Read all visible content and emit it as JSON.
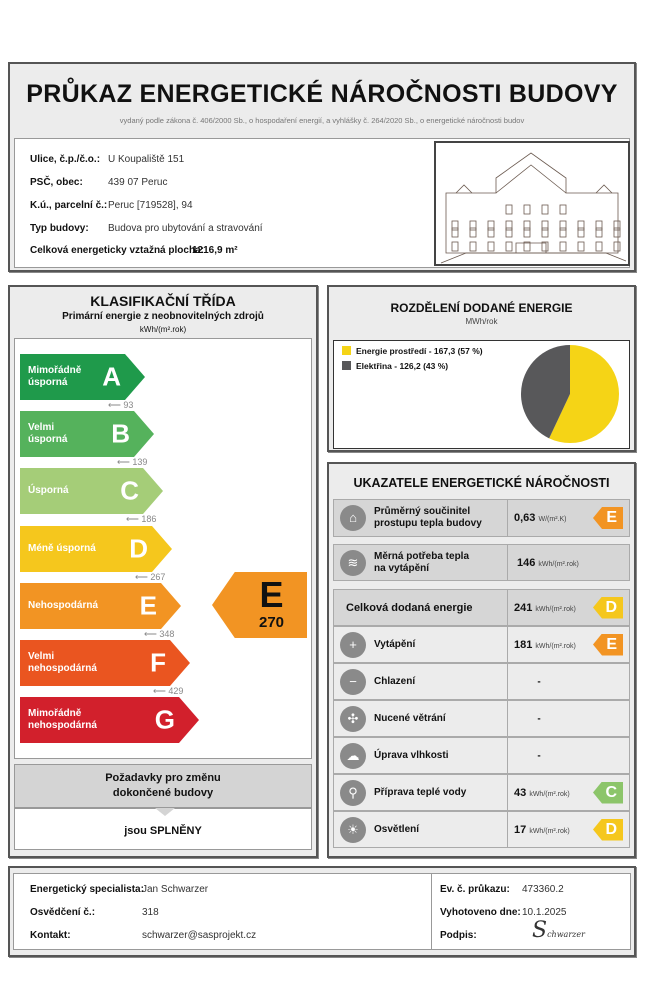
{
  "header": {
    "title": "PRŮKAZ ENERGETICKÉ NÁROČNOSTI BUDOVY",
    "subtitle": "vydaný podle zákona č. 406/2000 Sb., o hospodaření energií, a vyhlášky č. 264/2020 Sb., o energetické náročnosti budov"
  },
  "building": {
    "rows": [
      {
        "label": "Ulice, č.p./č.o.:",
        "value": "U Koupaliště 151"
      },
      {
        "label": "PSČ, obec:",
        "value": "439 07 Peruc"
      },
      {
        "label": "K.ú., parcelní č.:",
        "value": "Peruc [719528], 94"
      },
      {
        "label": "Typ budovy:",
        "value": "Budova pro ubytování a stravování"
      }
    ],
    "area_label": "Celková energeticky vztažná plocha:",
    "area_value": "1216,9 m²"
  },
  "classification": {
    "title": "KLASIFIKAČNÍ TŘÍDA",
    "subtitle": "Primární energie z neobnovitelných zdrojů",
    "unit": "kWh/(m².rok)",
    "classes": [
      {
        "letter": "A",
        "name": "Mimořádně\núsporná",
        "color": "#1f9a4b"
      },
      {
        "letter": "B",
        "name": "Velmi\núsporná",
        "color": "#55b25c"
      },
      {
        "letter": "C",
        "name": "Úsporná",
        "color": "#a5cd78"
      },
      {
        "letter": "D",
        "name": "Méně úsporná",
        "color": "#f5c71d"
      },
      {
        "letter": "E",
        "name": "Nehospodárná",
        "color": "#f29423"
      },
      {
        "letter": "F",
        "name": "Velmi\nnehospodárná",
        "color": "#ea5520"
      },
      {
        "letter": "G",
        "name": "Mimořádně\nnehospodárná",
        "color": "#d2202c"
      }
    ],
    "thresholds": [
      "93",
      "139",
      "186",
      "267",
      "348",
      "429"
    ],
    "rating": {
      "letter": "E",
      "value": "270",
      "color": "#f29423"
    },
    "requirements": {
      "title": "Požadavky pro změnu\ndokončené budovy",
      "result": "jsou SPLNĚNY"
    }
  },
  "energy_split": {
    "title": "ROZDĚLENÍ DODANÉ ENERGIE",
    "unit": "MWh/rok",
    "chart_data": {
      "type": "pie",
      "series": [
        {
          "name": "Energie prostředí - 167,3 (57 %)",
          "value": 167.3,
          "percent": 57,
          "color": "#f5d416"
        },
        {
          "name": "Elektřina - 126,2 (43 %)",
          "value": 126.2,
          "percent": 43,
          "color": "#58585a"
        }
      ]
    }
  },
  "indicators": {
    "title": "UKAZATELE ENERGETICKÉ NÁROČNOSTI",
    "rows": [
      {
        "icon": "house-icon",
        "name": "Průměrný součinitel\nprostupu tepla budovy",
        "value": "0,63",
        "unit": "W/(m².K)",
        "class": "E",
        "color": "#f29423"
      },
      {
        "icon": "heat-demand-icon",
        "name": "Měrná potřeba tepla\nna vytápění",
        "value": "146",
        "unit": "kWh/(m².rok)"
      },
      {
        "name": "Celková dodaná energie",
        "value": "241",
        "unit": "kWh/(m².rok)",
        "class": "D",
        "color": "#f5c71d"
      },
      {
        "icon": "heating-thermometer-icon",
        "name": "Vytápění",
        "value": "181",
        "unit": "kWh/(m².rok)",
        "class": "E",
        "color": "#f29423"
      },
      {
        "icon": "cooling-thermometer-icon",
        "name": "Chlazení",
        "value": "-"
      },
      {
        "icon": "fan-icon",
        "name": "Nucené větrání",
        "value": "-"
      },
      {
        "icon": "humidity-icon",
        "name": "Úprava vlhkosti",
        "value": "-"
      },
      {
        "icon": "water-tap-icon",
        "name": "Příprava teplé vody",
        "value": "43",
        "unit": "kWh/(m².rok)",
        "class": "C",
        "color": "#8cc56a"
      },
      {
        "icon": "light-bulb-icon",
        "name": "Osvětlení",
        "value": "17",
        "unit": "kWh/(m².rok)",
        "class": "D",
        "color": "#f5c71d"
      }
    ]
  },
  "footer": {
    "left": [
      {
        "label": "Energetický specialista:",
        "value": "Jan Schwarzer"
      },
      {
        "label": "Osvědčení č.:",
        "value": "318"
      },
      {
        "label": "Kontakt:",
        "value": "schwarzer@sasprojekt.cz"
      }
    ],
    "right": [
      {
        "label": "Ev. č. průkazu:",
        "value": "473360.2"
      },
      {
        "label": "Vyhotoveno dne:",
        "value": "10.1.2025"
      },
      {
        "label": "Podpis:",
        "value": ""
      }
    ],
    "signature": "Schwarzer"
  }
}
